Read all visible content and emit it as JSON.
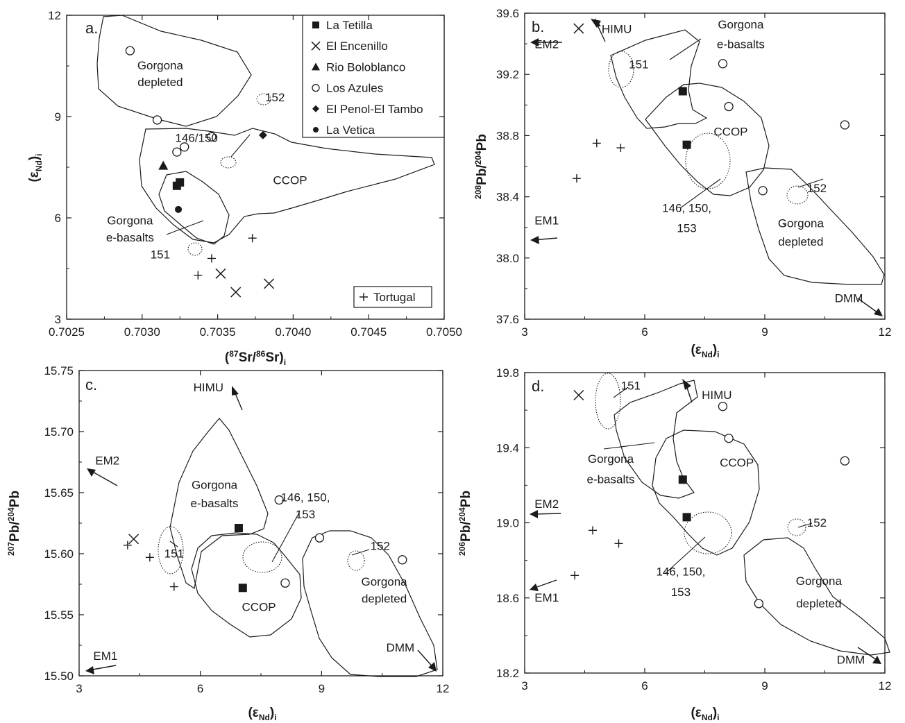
{
  "chart_data": [
    {
      "panel": "a.",
      "type": "scatter",
      "xlabel_html": "(<tspan font-size='12' dy='-7'>87</tspan><tspan dy='7'>Sr/</tspan><tspan font-size='12' dy='-7'>86</tspan><tspan dy='7'>Sr)</tspan><tspan font-size='12' dy='5'>i</tspan>",
      "ylabel": "(εNd)i",
      "xlim": [
        0.7025,
        0.705
      ],
      "ylim": [
        3,
        12
      ],
      "xticks": [
        "0.7025",
        "0.7030",
        "0.7035",
        "0.7040",
        "0.7045",
        "0.7050"
      ],
      "yticks": [
        "3",
        "6",
        "9",
        "12"
      ],
      "legend": {
        "placement": "top-right",
        "entries": [
          {
            "symbol": "filled-square",
            "label": "La Tetilla"
          },
          {
            "symbol": "cross",
            "label": "El Encenillo"
          },
          {
            "symbol": "filled-triangle",
            "label": "Rio Boloblanco"
          },
          {
            "symbol": "open-circle",
            "label": "Los Azules"
          },
          {
            "symbol": "filled-diamond",
            "label": "El Penol-El Tambo"
          },
          {
            "symbol": "filled-circle",
            "label": "La Vetica"
          }
        ],
        "tortugal": {
          "symbol": "plus",
          "label": "Tortugal"
        }
      },
      "series": [
        {
          "name": "La Tetilla",
          "symbol": "filled-square",
          "points": [
            [
              0.70323,
              6.95
            ],
            [
              0.70325,
              7.05
            ]
          ]
        },
        {
          "name": "El Encenillo",
          "symbol": "cross",
          "points": [
            [
              0.70352,
              4.35
            ],
            [
              0.70362,
              3.8
            ],
            [
              0.70384,
              4.05
            ]
          ]
        },
        {
          "name": "Rio Boloblanco",
          "symbol": "filled-triangle",
          "points": [
            [
              0.70314,
              7.55
            ]
          ]
        },
        {
          "name": "Los Azules",
          "symbol": "open-circle",
          "points": [
            [
              0.70292,
              10.95
            ],
            [
              0.7031,
              8.9
            ],
            [
              0.70323,
              7.95
            ],
            [
              0.70328,
              8.1
            ],
            [
              0.70346,
              8.4
            ]
          ]
        },
        {
          "name": "El Penol-El Tambo",
          "symbol": "filled-diamond",
          "points": [
            [
              0.7038,
              8.45
            ]
          ]
        },
        {
          "name": "La Vetica",
          "symbol": "filled-circle",
          "points": [
            [
              0.70324,
              6.25
            ]
          ]
        },
        {
          "name": "Tortugal",
          "symbol": "plus",
          "points": [
            [
              0.70373,
              5.4
            ],
            [
              0.70346,
              4.8
            ],
            [
              0.70337,
              4.3
            ]
          ]
        }
      ],
      "labels": [
        {
          "text": "Gorgona",
          "x": 0.70312,
          "y": 10.4
        },
        {
          "text": "depleted",
          "x": 0.70312,
          "y": 9.9
        },
        {
          "text": "152",
          "x": 0.70388,
          "y": 9.45
        },
        {
          "text": "146/150",
          "x": 0.70336,
          "y": 8.25
        },
        {
          "text": "CCOP",
          "x": 0.70398,
          "y": 7.0
        },
        {
          "text": "Gorgona",
          "x": 0.70292,
          "y": 5.8
        },
        {
          "text": "e-basalts",
          "x": 0.70292,
          "y": 5.3
        },
        {
          "text": "151",
          "x": 0.70312,
          "y": 4.8
        }
      ]
    },
    {
      "panel": "b.",
      "type": "scatter",
      "xlabel_html": "(ε<tspan font-size='12' dy='5' font-weight='bold'>Nd</tspan><tspan dy='-5'>)</tspan><tspan font-size='12' dy='5'>i</tspan>",
      "ylabel_html": "<tspan font-size='12' dy='-7'>208</tspan><tspan dy='7'>Pb/</tspan><tspan font-size='12' dy='-7'>204</tspan><tspan dy='7'>Pb</tspan>",
      "xlim": [
        3,
        12
      ],
      "ylim": [
        37.6,
        39.6
      ],
      "xticks": [
        "3",
        "6",
        "9",
        "12"
      ],
      "yticks": [
        "37.6",
        "38.0",
        "38.4",
        "38.8",
        "39.2",
        "39.6"
      ],
      "series": [
        {
          "name": "La Tetilla",
          "symbol": "filled-square",
          "points": [
            [
              6.95,
              39.09
            ],
            [
              7.05,
              38.74
            ]
          ]
        },
        {
          "name": "El Encenillo",
          "symbol": "cross",
          "points": [
            [
              4.35,
              39.5
            ]
          ]
        },
        {
          "name": "Los Azules",
          "symbol": "open-circle",
          "points": [
            [
              7.95,
              39.27
            ],
            [
              8.1,
              38.99
            ],
            [
              8.95,
              38.44
            ],
            [
              11.0,
              38.87
            ]
          ]
        },
        {
          "name": "Tortugal",
          "symbol": "plus",
          "points": [
            [
              4.8,
              38.75
            ],
            [
              5.4,
              38.72
            ],
            [
              4.3,
              38.52
            ]
          ]
        }
      ],
      "labels": [
        {
          "text": "HIMU",
          "x": 5.3,
          "y": 39.47
        },
        {
          "text": "EM2",
          "x": 3.55,
          "y": 39.37
        },
        {
          "text": "Gorgona",
          "x": 8.4,
          "y": 39.5
        },
        {
          "text": "e-basalts",
          "x": 8.4,
          "y": 39.37
        },
        {
          "text": "151",
          "x": 5.85,
          "y": 39.24
        },
        {
          "text": "CCOP",
          "x": 8.15,
          "y": 38.8
        },
        {
          "text": "152",
          "x": 10.3,
          "y": 38.43
        },
        {
          "text": "146, 150,",
          "x": 7.05,
          "y": 38.3
        },
        {
          "text": "153",
          "x": 7.05,
          "y": 38.17
        },
        {
          "text": "Gorgona",
          "x": 9.9,
          "y": 38.2
        },
        {
          "text": "depleted",
          "x": 9.9,
          "y": 38.08
        },
        {
          "text": "EM1",
          "x": 3.55,
          "y": 38.22
        },
        {
          "text": "DMM",
          "x": 11.1,
          "y": 37.71
        }
      ]
    },
    {
      "panel": "c.",
      "type": "scatter",
      "xlabel_html": "(ε<tspan font-size='12' dy='5' font-weight='bold'>Nd</tspan><tspan dy='-5'>)</tspan><tspan font-size='12' dy='5'>i</tspan>",
      "ylabel_html": "<tspan font-size='12' dy='-7'>207</tspan><tspan dy='7'>Pb/</tspan><tspan font-size='12' dy='-7'>204</tspan><tspan dy='7'>Pb</tspan>",
      "xlim": [
        3,
        12
      ],
      "ylim": [
        15.5,
        15.75
      ],
      "xticks": [
        "3",
        "6",
        "9",
        "12"
      ],
      "yticks": [
        "15.50",
        "15.55",
        "15.60",
        "15.65",
        "15.70",
        "15.75"
      ],
      "series": [
        {
          "name": "La Tetilla",
          "symbol": "filled-square",
          "points": [
            [
              6.95,
              15.621
            ],
            [
              7.05,
              15.572
            ]
          ]
        },
        {
          "name": "El Encenillo",
          "symbol": "cross",
          "points": [
            [
              4.35,
              15.612
            ]
          ]
        },
        {
          "name": "Los Azules",
          "symbol": "open-circle",
          "points": [
            [
              7.95,
              15.644
            ],
            [
              8.1,
              15.576
            ],
            [
              8.95,
              15.613
            ],
            [
              11.0,
              15.595
            ]
          ]
        },
        {
          "name": "Tortugal",
          "symbol": "plus",
          "points": [
            [
              4.2,
              15.607
            ],
            [
              4.75,
              15.597
            ],
            [
              5.35,
              15.573
            ]
          ]
        }
      ],
      "labels": [
        {
          "text": "HIMU",
          "x": 6.2,
          "y": 15.733
        },
        {
          "text": "EM2",
          "x": 3.7,
          "y": 15.673
        },
        {
          "text": "Gorgona",
          "x": 6.35,
          "y": 15.653
        },
        {
          "text": "e-basalts",
          "x": 6.35,
          "y": 15.638
        },
        {
          "text": "146, 150,",
          "x": 8.6,
          "y": 15.643
        },
        {
          "text": "153",
          "x": 8.6,
          "y": 15.629
        },
        {
          "text": "151",
          "x": 5.35,
          "y": 15.597
        },
        {
          "text": "152",
          "x": 10.45,
          "y": 15.603
        },
        {
          "text": "Gorgona",
          "x": 10.55,
          "y": 15.574
        },
        {
          "text": "depleted",
          "x": 10.55,
          "y": 15.56
        },
        {
          "text": "CCOP",
          "x": 7.45,
          "y": 15.553
        },
        {
          "text": "EM1",
          "x": 3.65,
          "y": 15.513
        },
        {
          "text": "DMM",
          "x": 10.95,
          "y": 15.52
        }
      ]
    },
    {
      "panel": "d.",
      "type": "scatter",
      "xlabel_html": "(ε<tspan font-size='12' dy='5' font-weight='bold'>Nd</tspan><tspan dy='-5'>)</tspan><tspan font-size='12' dy='5'>i</tspan>",
      "ylabel_html": "<tspan font-size='12' dy='-7'>206</tspan><tspan dy='7'>Pb/</tspan><tspan font-size='12' dy='-7'>204</tspan><tspan dy='7'>Pb</tspan>",
      "xlim": [
        3,
        12
      ],
      "ylim": [
        18.2,
        19.8
      ],
      "xticks": [
        "3",
        "6",
        "9",
        "12"
      ],
      "yticks": [
        "18.2",
        "18.6",
        "19.0",
        "19.4",
        "19.8"
      ],
      "series": [
        {
          "name": "La Tetilla",
          "symbol": "filled-square",
          "points": [
            [
              6.95,
              19.23
            ],
            [
              7.05,
              19.03
            ]
          ]
        },
        {
          "name": "El Encenillo",
          "symbol": "cross",
          "points": [
            [
              4.35,
              19.68
            ]
          ]
        },
        {
          "name": "Los Azules",
          "symbol": "open-circle",
          "points": [
            [
              7.95,
              19.62
            ],
            [
              8.1,
              19.45
            ],
            [
              11.0,
              19.33
            ],
            [
              8.85,
              18.57
            ]
          ]
        },
        {
          "name": "Tortugal",
          "symbol": "plus",
          "points": [
            [
              4.7,
              18.96
            ],
            [
              5.35,
              18.89
            ],
            [
              4.25,
              18.72
            ]
          ]
        }
      ],
      "labels": [
        {
          "text": "151",
          "x": 5.65,
          "y": 19.71
        },
        {
          "text": "HIMU",
          "x": 7.8,
          "y": 19.66
        },
        {
          "text": "Gorgona",
          "x": 5.15,
          "y": 19.32
        },
        {
          "text": "e-basalts",
          "x": 5.15,
          "y": 19.21
        },
        {
          "text": "CCOP",
          "x": 8.3,
          "y": 19.3
        },
        {
          "text": "EM2",
          "x": 3.55,
          "y": 19.08
        },
        {
          "text": "152",
          "x": 10.3,
          "y": 18.98
        },
        {
          "text": "146, 150,",
          "x": 6.9,
          "y": 18.72
        },
        {
          "text": "153",
          "x": 6.9,
          "y": 18.61
        },
        {
          "text": "EM1",
          "x": 3.55,
          "y": 18.58
        },
        {
          "text": "Gorgona",
          "x": 10.35,
          "y": 18.67
        },
        {
          "text": "depleted",
          "x": 10.35,
          "y": 18.55
        },
        {
          "text": "DMM",
          "x": 11.15,
          "y": 18.25
        }
      ]
    }
  ]
}
